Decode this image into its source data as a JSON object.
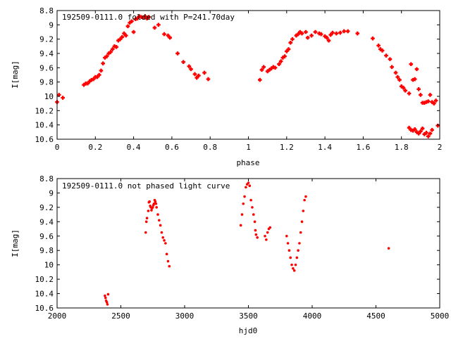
{
  "chart_data": [
    {
      "type": "scatter",
      "title": "192509-0111.0 folded with P=241.70day",
      "xlabel": "phase",
      "ylabel": "I[mag]",
      "xlim": [
        0,
        2
      ],
      "ylim": [
        10.6,
        8.8
      ],
      "y_inverted": true,
      "x_ticks": [
        "0",
        "0.2",
        "0.4",
        "0.6",
        "0.8",
        "1",
        "1.2",
        "1.4",
        "1.6",
        "1.8",
        "2"
      ],
      "y_ticks": [
        "8.8",
        "9",
        "9.2",
        "9.4",
        "9.6",
        "9.8",
        "10",
        "10.2",
        "10.4",
        "10.6"
      ],
      "color": "#ff0000",
      "points": [
        [
          0.0,
          10.08
        ],
        [
          0.01,
          9.98
        ],
        [
          0.03,
          10.02
        ],
        [
          0.14,
          9.84
        ],
        [
          0.15,
          9.82
        ],
        [
          0.16,
          9.82
        ],
        [
          0.17,
          9.79
        ],
        [
          0.18,
          9.77
        ],
        [
          0.19,
          9.76
        ],
        [
          0.2,
          9.73
        ],
        [
          0.21,
          9.73
        ],
        [
          0.22,
          9.7
        ],
        [
          0.23,
          9.64
        ],
        [
          0.24,
          9.54
        ],
        [
          0.25,
          9.46
        ],
        [
          0.26,
          9.44
        ],
        [
          0.27,
          9.4
        ],
        [
          0.28,
          9.38
        ],
        [
          0.29,
          9.34
        ],
        [
          0.3,
          9.3
        ],
        [
          0.31,
          9.31
        ],
        [
          0.32,
          9.22
        ],
        [
          0.33,
          9.2
        ],
        [
          0.34,
          9.17
        ],
        [
          0.35,
          9.12
        ],
        [
          0.36,
          9.15
        ],
        [
          0.37,
          9.02
        ],
        [
          0.38,
          8.97
        ],
        [
          0.39,
          8.95
        ],
        [
          0.4,
          9.1
        ],
        [
          0.41,
          8.92
        ],
        [
          0.42,
          8.91
        ],
        [
          0.43,
          8.88
        ],
        [
          0.44,
          8.89
        ],
        [
          0.45,
          8.9
        ],
        [
          0.46,
          8.88
        ],
        [
          0.47,
          8.91
        ],
        [
          0.48,
          8.89
        ],
        [
          0.51,
          9.04
        ],
        [
          0.53,
          9.0
        ],
        [
          0.56,
          9.13
        ],
        [
          0.58,
          9.15
        ],
        [
          0.59,
          9.18
        ],
        [
          0.63,
          9.4
        ],
        [
          0.66,
          9.52
        ],
        [
          0.69,
          9.58
        ],
        [
          0.7,
          9.62
        ],
        [
          0.72,
          9.69
        ],
        [
          0.73,
          9.74
        ],
        [
          0.74,
          9.71
        ],
        [
          0.77,
          9.67
        ],
        [
          0.79,
          9.76
        ],
        [
          1.06,
          9.77
        ],
        [
          1.07,
          9.63
        ],
        [
          1.08,
          9.59
        ],
        [
          1.1,
          9.65
        ],
        [
          1.11,
          9.63
        ],
        [
          1.12,
          9.61
        ],
        [
          1.13,
          9.59
        ],
        [
          1.14,
          9.6
        ],
        [
          1.16,
          9.55
        ],
        [
          1.17,
          9.51
        ],
        [
          1.18,
          9.46
        ],
        [
          1.19,
          9.44
        ],
        [
          1.2,
          9.37
        ],
        [
          1.21,
          9.34
        ],
        [
          1.22,
          9.25
        ],
        [
          1.23,
          9.2
        ],
        [
          1.25,
          9.15
        ],
        [
          1.26,
          9.13
        ],
        [
          1.27,
          9.1
        ],
        [
          1.28,
          9.12
        ],
        [
          1.3,
          9.1
        ],
        [
          1.31,
          9.18
        ],
        [
          1.33,
          9.15
        ],
        [
          1.35,
          9.1
        ],
        [
          1.37,
          9.12
        ],
        [
          1.38,
          9.13
        ],
        [
          1.4,
          9.16
        ],
        [
          1.41,
          9.18
        ],
        [
          1.42,
          9.22
        ],
        [
          1.43,
          9.14
        ],
        [
          1.44,
          9.11
        ],
        [
          1.46,
          9.12
        ],
        [
          1.48,
          9.11
        ],
        [
          1.5,
          9.09
        ],
        [
          1.52,
          9.09
        ],
        [
          1.57,
          9.12
        ],
        [
          1.65,
          9.19
        ],
        [
          1.68,
          9.29
        ],
        [
          1.69,
          9.34
        ],
        [
          1.7,
          9.36
        ],
        [
          1.72,
          9.43
        ],
        [
          1.74,
          9.48
        ],
        [
          1.75,
          9.59
        ],
        [
          1.77,
          9.67
        ],
        [
          1.78,
          9.73
        ],
        [
          1.79,
          9.77
        ],
        [
          1.8,
          9.86
        ],
        [
          1.81,
          9.88
        ],
        [
          1.82,
          9.92
        ],
        [
          1.84,
          9.96
        ],
        [
          1.85,
          9.55
        ],
        [
          1.86,
          9.77
        ],
        [
          1.87,
          9.76
        ],
        [
          1.88,
          9.62
        ],
        [
          1.89,
          9.9
        ],
        [
          1.9,
          9.98
        ],
        [
          1.91,
          10.09
        ],
        [
          1.92,
          10.09
        ],
        [
          1.93,
          10.08
        ],
        [
          1.94,
          10.07
        ],
        [
          1.95,
          9.98
        ],
        [
          1.96,
          10.08
        ],
        [
          1.97,
          10.1
        ],
        [
          1.98,
          10.06
        ],
        [
          1.99,
          10.41
        ],
        [
          1.84,
          10.44
        ],
        [
          1.85,
          10.47
        ],
        [
          1.86,
          10.48
        ],
        [
          1.87,
          10.46
        ],
        [
          1.88,
          10.5
        ],
        [
          1.89,
          10.52
        ],
        [
          1.9,
          10.49
        ],
        [
          1.91,
          10.45
        ],
        [
          1.92,
          10.53
        ],
        [
          1.93,
          10.51
        ],
        [
          1.94,
          10.56
        ],
        [
          1.95,
          10.52
        ],
        [
          1.96,
          10.47
        ]
      ]
    },
    {
      "type": "scatter",
      "title": "192509-0111.0 not phased light curve",
      "xlabel": "hjd0",
      "ylabel": "I[mag]",
      "xlim": [
        2000,
        5000
      ],
      "ylim": [
        10.6,
        8.8
      ],
      "y_inverted": true,
      "x_ticks": [
        "2000",
        "2500",
        "3000",
        "3500",
        "4000",
        "4500",
        "5000"
      ],
      "y_ticks": [
        "8.8",
        "9",
        "9.2",
        "9.4",
        "9.6",
        "9.8",
        "10",
        "10.2",
        "10.4",
        "10.6"
      ],
      "color": "#ff0000",
      "points": [
        [
          2375,
          10.43
        ],
        [
          2380,
          10.46
        ],
        [
          2385,
          10.5
        ],
        [
          2390,
          10.52
        ],
        [
          2395,
          10.55
        ],
        [
          2400,
          10.41
        ],
        [
          2695,
          9.55
        ],
        [
          2700,
          9.4
        ],
        [
          2705,
          9.35
        ],
        [
          2715,
          9.25
        ],
        [
          2720,
          9.13
        ],
        [
          2725,
          9.12
        ],
        [
          2730,
          9.18
        ],
        [
          2735,
          9.2
        ],
        [
          2740,
          9.24
        ],
        [
          2745,
          9.21
        ],
        [
          2750,
          9.2
        ],
        [
          2755,
          9.17
        ],
        [
          2760,
          9.15
        ],
        [
          2765,
          9.1
        ],
        [
          2770,
          9.12
        ],
        [
          2775,
          9.15
        ],
        [
          2780,
          9.2
        ],
        [
          2790,
          9.3
        ],
        [
          2800,
          9.38
        ],
        [
          2810,
          9.45
        ],
        [
          2820,
          9.55
        ],
        [
          2830,
          9.62
        ],
        [
          2840,
          9.66
        ],
        [
          2850,
          9.7
        ],
        [
          2860,
          9.85
        ],
        [
          2870,
          9.95
        ],
        [
          2880,
          10.02
        ],
        [
          3440,
          9.45
        ],
        [
          3450,
          9.3
        ],
        [
          3460,
          9.15
        ],
        [
          3470,
          9.05
        ],
        [
          3480,
          8.92
        ],
        [
          3490,
          8.88
        ],
        [
          3500,
          8.86
        ],
        [
          3510,
          8.9
        ],
        [
          3520,
          9.1
        ],
        [
          3530,
          9.2
        ],
        [
          3540,
          9.3
        ],
        [
          3550,
          9.4
        ],
        [
          3555,
          9.52
        ],
        [
          3560,
          9.58
        ],
        [
          3570,
          9.62
        ],
        [
          3630,
          9.6
        ],
        [
          3640,
          9.65
        ],
        [
          3650,
          9.55
        ],
        [
          3660,
          9.5
        ],
        [
          3670,
          9.48
        ],
        [
          3800,
          9.6
        ],
        [
          3810,
          9.7
        ],
        [
          3820,
          9.8
        ],
        [
          3830,
          9.9
        ],
        [
          3840,
          10.0
        ],
        [
          3850,
          10.05
        ],
        [
          3860,
          10.08
        ],
        [
          3870,
          10.0
        ],
        [
          3880,
          9.9
        ],
        [
          3890,
          9.8
        ],
        [
          3900,
          9.7
        ],
        [
          3910,
          9.55
        ],
        [
          3920,
          9.4
        ],
        [
          3930,
          9.25
        ],
        [
          3940,
          9.1
        ],
        [
          3950,
          9.05
        ],
        [
          4600,
          9.77
        ]
      ]
    }
  ]
}
